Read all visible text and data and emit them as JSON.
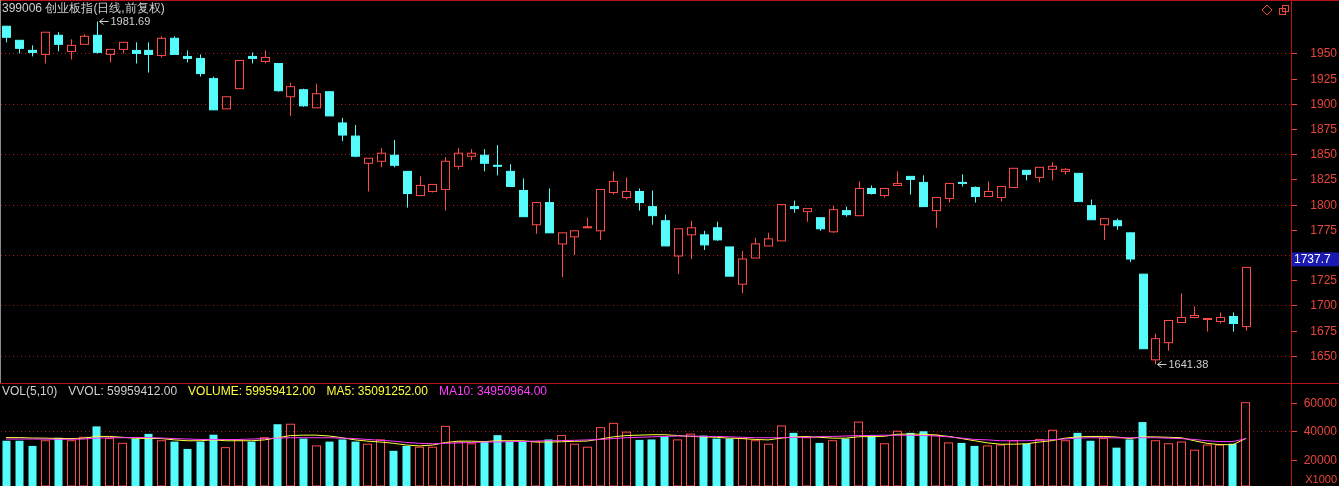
{
  "chart_data": [
    {
      "type": "candlestick",
      "title": "399006 创业板指(日线,前复权)",
      "categories": [
        null,
        null,
        null,
        null,
        null,
        null,
        null,
        null,
        null,
        null,
        null,
        null,
        null,
        null,
        null,
        null,
        null,
        null,
        null,
        null,
        null,
        null,
        null,
        null,
        null,
        null,
        null,
        null,
        null,
        null,
        null,
        null,
        null,
        null,
        null,
        null,
        null,
        null,
        null,
        null,
        null,
        null,
        null,
        null,
        null,
        null,
        null,
        null,
        null,
        null,
        null,
        null,
        null,
        null,
        null,
        null,
        null,
        null,
        null,
        null,
        null,
        null,
        null,
        null,
        null,
        null,
        null,
        null,
        null,
        null,
        null,
        null,
        null,
        null,
        null,
        null,
        null,
        null,
        null,
        null,
        null,
        null,
        null,
        null,
        null,
        null,
        null,
        null,
        null,
        null,
        null,
        null,
        null,
        null,
        null,
        null,
        null,
        null,
        null,
        null
      ],
      "ohlc": [
        [
          1977,
          1977,
          1961,
          1966
        ],
        [
          1963,
          1963,
          1950,
          1955
        ],
        [
          1953,
          1958,
          1947,
          1951
        ],
        [
          1949,
          1971,
          1940,
          1971
        ],
        [
          1968,
          1971,
          1952,
          1959
        ],
        [
          1952,
          1964,
          1944,
          1958
        ],
        [
          1959,
          1969,
          1959,
          1967
        ],
        [
          1968,
          1981.69,
          1950,
          1951
        ],
        [
          1949,
          1954,
          1941,
          1954
        ],
        [
          1954,
          1961,
          1950,
          1961
        ],
        [
          1953,
          1961,
          1940,
          1950
        ],
        [
          1953,
          1961,
          1931,
          1949
        ],
        [
          1948,
          1967,
          1946,
          1965
        ],
        [
          1965,
          1967,
          1949,
          1949
        ],
        [
          1947,
          1953,
          1941,
          1945
        ],
        [
          1945,
          1949,
          1927,
          1930
        ],
        [
          1925,
          1927,
          1894,
          1894
        ],
        [
          1895,
          1907,
          1895,
          1907
        ],
        [
          1915,
          1943,
          1915,
          1943
        ],
        [
          1947,
          1951,
          1940,
          1945
        ],
        [
          1942,
          1953,
          1940,
          1946
        ],
        [
          1940,
          1940,
          1912,
          1913
        ],
        [
          1907,
          1921,
          1888,
          1917
        ],
        [
          1914,
          1915,
          1897,
          1898
        ],
        [
          1896,
          1920,
          1896,
          1910
        ],
        [
          1912,
          1912,
          1888,
          1888
        ],
        [
          1881,
          1886,
          1863,
          1869
        ],
        [
          1868,
          1879,
          1847,
          1848
        ],
        [
          1841,
          1846,
          1813,
          1846
        ],
        [
          1843,
          1856,
          1837,
          1851
        ],
        [
          1849,
          1864,
          1837,
          1839
        ],
        [
          1833,
          1833,
          1797,
          1811
        ],
        [
          1809,
          1828,
          1809,
          1819
        ],
        [
          1813,
          1820,
          1812,
          1820
        ],
        [
          1815,
          1847,
          1794,
          1843
        ],
        [
          1838,
          1856,
          1835,
          1851
        ],
        [
          1848,
          1855,
          1844,
          1851
        ],
        [
          1849,
          1855,
          1833,
          1841
        ],
        [
          1839,
          1859,
          1829,
          1838
        ],
        [
          1833,
          1840,
          1818,
          1818
        ],
        [
          1814,
          1826,
          1788,
          1788
        ],
        [
          1780,
          1802,
          1771,
          1802
        ],
        [
          1802,
          1816,
          1772,
          1772
        ],
        [
          1761,
          1772,
          1728,
          1772
        ],
        [
          1768,
          1774,
          1750,
          1774
        ],
        [
          1777,
          1787,
          1777,
          1778
        ],
        [
          1774,
          1815,
          1765,
          1815
        ],
        [
          1812,
          1833,
          1810,
          1823
        ],
        [
          1807,
          1827,
          1805,
          1813
        ],
        [
          1813,
          1816,
          1794,
          1802
        ],
        [
          1798,
          1814,
          1780,
          1789
        ],
        [
          1784,
          1790,
          1759,
          1759
        ],
        [
          1749,
          1776,
          1731,
          1776
        ],
        [
          1770,
          1784,
          1746,
          1777
        ],
        [
          1770,
          1774,
          1755,
          1760
        ],
        [
          1777,
          1783,
          1764,
          1765
        ],
        [
          1758,
          1758,
          1729,
          1729
        ],
        [
          1721,
          1754,
          1712,
          1746
        ],
        [
          1747,
          1767,
          1747,
          1761
        ],
        [
          1759,
          1772,
          1759,
          1766
        ],
        [
          1764,
          1800,
          1764,
          1800
        ],
        [
          1798,
          1804,
          1792,
          1796
        ],
        [
          1793,
          1796,
          1783,
          1796
        ],
        [
          1787,
          1787,
          1774,
          1776
        ],
        [
          1773,
          1799,
          1772,
          1795
        ],
        [
          1794,
          1798,
          1788,
          1790
        ],
        [
          1789,
          1823,
          1789,
          1816
        ],
        [
          1816,
          1819,
          1810,
          1811
        ],
        [
          1809,
          1816,
          1807,
          1816
        ],
        [
          1819,
          1833,
          1819,
          1821
        ],
        [
          1828,
          1828,
          1810,
          1825
        ],
        [
          1822,
          1829,
          1798,
          1798
        ],
        [
          1794,
          1807,
          1777,
          1807
        ],
        [
          1806,
          1821,
          1802,
          1821
        ],
        [
          1822,
          1830,
          1818,
          1821
        ],
        [
          1817,
          1818,
          1802,
          1808
        ],
        [
          1808,
          1823,
          1808,
          1813
        ],
        [
          1807,
          1818,
          1803,
          1818
        ],
        [
          1817,
          1836,
          1817,
          1836
        ],
        [
          1834,
          1834,
          1824,
          1830
        ],
        [
          1827,
          1837,
          1822,
          1837
        ],
        [
          1835,
          1842,
          1824,
          1838
        ],
        [
          1833,
          1836,
          1830,
          1835
        ],
        [
          1831,
          1831,
          1803,
          1803
        ],
        [
          1799,
          1805,
          1785,
          1785
        ],
        [
          1780,
          1786,
          1765,
          1786
        ],
        [
          1784,
          1786,
          1775,
          1779
        ],
        [
          1772,
          1772,
          1743,
          1746
        ],
        [
          1731,
          1731,
          1657,
          1657
        ],
        [
          1646,
          1672,
          1641.38,
          1667
        ],
        [
          1663,
          1685,
          1655,
          1685
        ],
        [
          1683,
          1712,
          1683,
          1688
        ],
        [
          1688,
          1699,
          1687,
          1690
        ],
        [
          1686,
          1687,
          1674,
          1687
        ],
        [
          1684,
          1693,
          1682,
          1688
        ],
        [
          1689,
          1693,
          1674,
          1682
        ],
        [
          1679,
          1737.7,
          1675,
          1737.7
        ],
        null,
        null,
        null
      ],
      "ylim": [
        1623,
        2002
      ],
      "yticks": [
        1650,
        1675,
        1700,
        1725,
        {
          "value": 1750,
          "label": null
        },
        1775,
        1800,
        1825,
        1850,
        1875,
        1900,
        1925,
        1950
      ],
      "grid": "y",
      "tick_labels": "y",
      "annotations": [
        "1981.69",
        "1641.38",
        "1737.7"
      ]
    },
    {
      "type": "bar",
      "title": "VOL(5,10)",
      "ylabel": "X1000",
      "annotations": [
        "VVOL: 59959412.00",
        "VOLUME: 59959412.00"
      ],
      "categories": [
        null,
        null,
        null,
        null,
        null,
        null,
        null,
        null,
        null,
        null,
        null,
        null,
        null,
        null,
        null,
        null,
        null,
        null,
        null,
        null,
        null,
        null,
        null,
        null,
        null,
        null,
        null,
        null,
        null,
        null,
        null,
        null,
        null,
        null,
        null,
        null,
        null,
        null,
        null,
        null,
        null,
        null,
        null,
        null,
        null,
        null,
        null,
        null,
        null,
        null,
        null,
        null,
        null,
        null,
        null,
        null,
        null,
        null,
        null,
        null,
        null,
        null,
        null,
        null,
        null,
        null,
        null,
        null,
        null,
        null,
        null,
        null,
        null,
        null,
        null,
        null,
        null,
        null,
        null,
        null,
        null,
        null,
        null,
        null,
        null,
        null,
        null,
        null,
        null,
        null,
        null,
        null,
        null,
        null,
        null,
        null,
        null,
        null,
        null,
        null
      ],
      "series": [
        {
          "type": "bar",
          "values": [
            33500,
            33500,
            29900,
            33500,
            35600,
            33500,
            35900,
            43500,
            35000,
            31700,
            35000,
            38300,
            33500,
            32900,
            27800,
            32900,
            37700,
            28700,
            34100,
            32900,
            35600,
            45000,
            45000,
            35000,
            29900,
            32900,
            34400,
            32900,
            31100,
            34100,
            26500,
            29900,
            29000,
            29000,
            43500,
            32600,
            31400,
            32900,
            37400,
            32900,
            32900,
            32900,
            34400,
            37100,
            31100,
            29000,
            42600,
            45600,
            39500,
            34100,
            34400,
            36500,
            34100,
            38100,
            37100,
            35000,
            35000,
            35000,
            33500,
            31100,
            43800,
            39000,
            35600,
            32000,
            33500,
            35000,
            46500,
            37400,
            31400,
            40100,
            39000,
            40100,
            37400,
            32000,
            32000,
            29900,
            29900,
            30500,
            33500,
            31400,
            34400,
            40800,
            33500,
            39000,
            33500,
            35000,
            28700,
            34400,
            46500,
            33500,
            31400,
            32600,
            26900,
            30500,
            30500,
            31400,
            60000,
            null,
            null,
            null
          ],
          "colors": [
            "#54fcfc",
            "#54fcfc",
            "#54fcfc",
            "#ff4a4a",
            "#54fcfc",
            "#ff4a4a",
            "#ff4a4a",
            "#54fcfc",
            "#ff4a4a",
            "#ff4a4a",
            "#54fcfc",
            "#54fcfc",
            "#ff4a4a",
            "#54fcfc",
            "#54fcfc",
            "#54fcfc",
            "#54fcfc",
            "#ff4a4a",
            "#ff4a4a",
            "#54fcfc",
            "#ff4a4a",
            "#54fcfc",
            "#ff4a4a",
            "#54fcfc",
            "#ff4a4a",
            "#54fcfc",
            "#54fcfc",
            "#54fcfc",
            "#ff4a4a",
            "#ff4a4a",
            "#54fcfc",
            "#54fcfc",
            "#ff4a4a",
            "#ff4a4a",
            "#ff4a4a",
            "#ff4a4a",
            "#ff4a4a",
            "#54fcfc",
            "#54fcfc",
            "#54fcfc",
            "#54fcfc",
            "#ff4a4a",
            "#54fcfc",
            "#ff4a4a",
            "#ff4a4a",
            "#ff4a4a",
            "#ff4a4a",
            "#ff4a4a",
            "#ff4a4a",
            "#54fcfc",
            "#54fcfc",
            "#54fcfc",
            "#ff4a4a",
            "#ff4a4a",
            "#54fcfc",
            "#54fcfc",
            "#54fcfc",
            "#ff4a4a",
            "#ff4a4a",
            "#ff4a4a",
            "#ff4a4a",
            "#54fcfc",
            "#ff4a4a",
            "#54fcfc",
            "#ff4a4a",
            "#54fcfc",
            "#ff4a4a",
            "#54fcfc",
            "#ff4a4a",
            "#ff4a4a",
            "#54fcfc",
            "#54fcfc",
            "#ff4a4a",
            "#ff4a4a",
            "#54fcfc",
            "#54fcfc",
            "#ff4a4a",
            "#ff4a4a",
            "#ff4a4a",
            "#54fcfc",
            "#ff4a4a",
            "#ff4a4a",
            "#ff4a4a",
            "#54fcfc",
            "#54fcfc",
            "#ff4a4a",
            "#54fcfc",
            "#54fcfc",
            "#54fcfc",
            "#ff4a4a",
            "#ff4a4a",
            "#ff4a4a",
            "#ff4a4a",
            "#ff4a4a",
            "#ff4a4a",
            "#54fcfc",
            "#ff4a4a",
            null,
            null,
            null
          ]
        },
        {
          "name": "MA5: 35091252.00",
          "type": "line",
          "color": "#ffff3c",
          "values": [
            35700,
            35700,
            35400,
            35300,
            35100,
            35000,
            35300,
            36500,
            36500,
            35900,
            35200,
            35100,
            35000,
            34100,
            33500,
            33500,
            34100,
            33500,
            33500,
            33500,
            34100,
            35600,
            37100,
            37400,
            37400,
            36800,
            35600,
            34100,
            33200,
            32600,
            31700,
            30500,
            29900,
            30500,
            32300,
            33200,
            33200,
            32900,
            33500,
            33500,
            33500,
            32600,
            32600,
            32800,
            33100,
            33300,
            34700,
            36200,
            37100,
            37400,
            37700,
            37700,
            37100,
            36500,
            36200,
            35900,
            35300,
            35000,
            34400,
            34100,
            35300,
            36200,
            36400,
            35900,
            35300,
            35300,
            36300,
            36400,
            36600,
            38000,
            38200,
            38000,
            37500,
            36500,
            35000,
            33500,
            32000,
            31100,
            31100,
            31400,
            32600,
            33600,
            35300,
            36200,
            36500,
            36500,
            36100,
            35000,
            36200,
            36200,
            35900,
            35600,
            33500,
            31700,
            30800,
            30800,
            35100,
            null,
            null,
            null
          ]
        },
        {
          "name": "MA10: 34950964.00",
          "type": "line",
          "color": "#ff3cff",
          "values": [
            34700,
            34700,
            34700,
            34600,
            34500,
            34500,
            34700,
            35300,
            35600,
            35600,
            35800,
            35700,
            35400,
            35000,
            34700,
            34400,
            34400,
            34400,
            34400,
            34700,
            35000,
            35300,
            35600,
            35600,
            35600,
            35600,
            35300,
            35000,
            34400,
            33800,
            33200,
            32300,
            31700,
            31400,
            31700,
            32000,
            32300,
            32600,
            32600,
            32900,
            33000,
            33300,
            33500,
            33600,
            33800,
            34100,
            34400,
            35000,
            35600,
            35900,
            36200,
            36500,
            36800,
            36800,
            36500,
            36500,
            36200,
            35900,
            35600,
            35600,
            35600,
            35900,
            35700,
            36500,
            36500,
            36800,
            37100,
            37200,
            37400,
            37300,
            37300,
            37100,
            36800,
            36200,
            35300,
            34400,
            34100,
            33500,
            33500,
            33500,
            33800,
            34300,
            34700,
            35300,
            35600,
            35600,
            35500,
            35600,
            35600,
            35600,
            35300,
            35000,
            34400,
            33500,
            32900,
            32900,
            35000,
            null,
            null,
            null
          ]
        }
      ],
      "ylim": [
        2000,
        73000
      ],
      "yticks": [
        20000,
        40000,
        60000
      ],
      "ref_lines": [
        {
          "axis": "y",
          "value": 40000,
          "color": "#a01c1c",
          "line_style": "dotted"
        }
      ],
      "tick_labels": "y",
      "legend": "top left"
    }
  ]
}
